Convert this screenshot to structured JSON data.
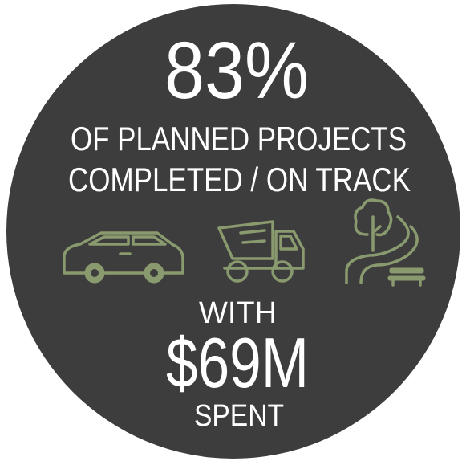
{
  "headline": "83%",
  "subtitle_lines": [
    "OF PLANNED PROJECTS",
    "COMPLETED / ON TRACK"
  ],
  "with": "WITH",
  "amount": "$69M",
  "spent": "SPENT"
}
